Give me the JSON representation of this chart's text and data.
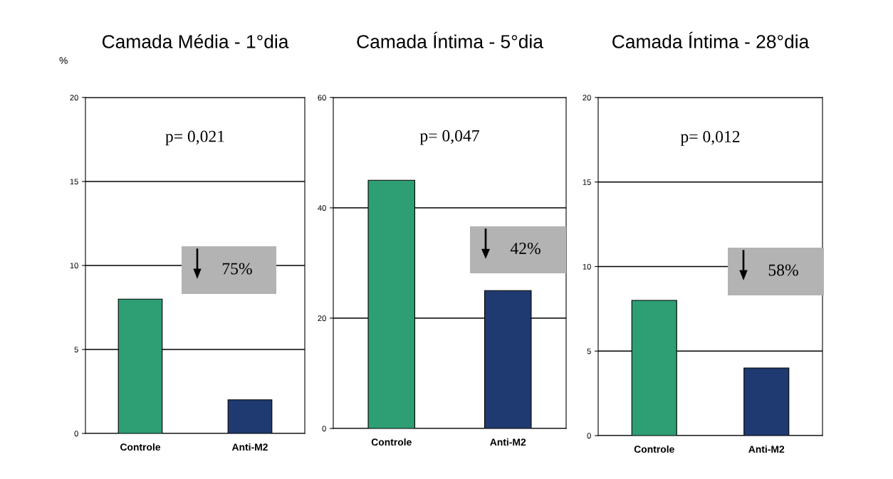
{
  "chart_data": [
    {
      "type": "bar",
      "title": "Camada Média - 1°dia",
      "ylabel": "%",
      "categories": [
        "Controle",
        "Anti-M2"
      ],
      "colors": [
        "#2e9e74",
        "#1f3a70"
      ],
      "values": [
        8,
        2
      ],
      "ylim": [
        0,
        20
      ],
      "yticks": [
        0,
        5,
        10,
        15,
        20
      ],
      "grid": "y",
      "annotations": [
        "p= 0,021",
        "75%"
      ]
    },
    {
      "type": "bar",
      "title": "Camada Íntima - 5°dia",
      "categories": [
        "Controle",
        "Anti-M2"
      ],
      "colors": [
        "#2e9e74",
        "#1f3a70"
      ],
      "values": [
        45,
        25
      ],
      "ylim": [
        0,
        60
      ],
      "yticks": [
        0,
        20,
        40,
        60
      ],
      "grid": "y",
      "annotations": [
        "p= 0,047",
        "42%"
      ]
    },
    {
      "type": "bar",
      "title": "Camada Íntima - 28°dia",
      "categories": [
        "Controle",
        "Anti-M2"
      ],
      "colors": [
        "#2e9e74",
        "#1f3a70"
      ],
      "values": [
        8,
        4
      ],
      "ylim": [
        0,
        20
      ],
      "yticks": [
        0,
        5,
        10,
        15,
        20
      ],
      "grid": "y",
      "annotations": [
        "p= 0,012",
        "58%"
      ]
    }
  ]
}
